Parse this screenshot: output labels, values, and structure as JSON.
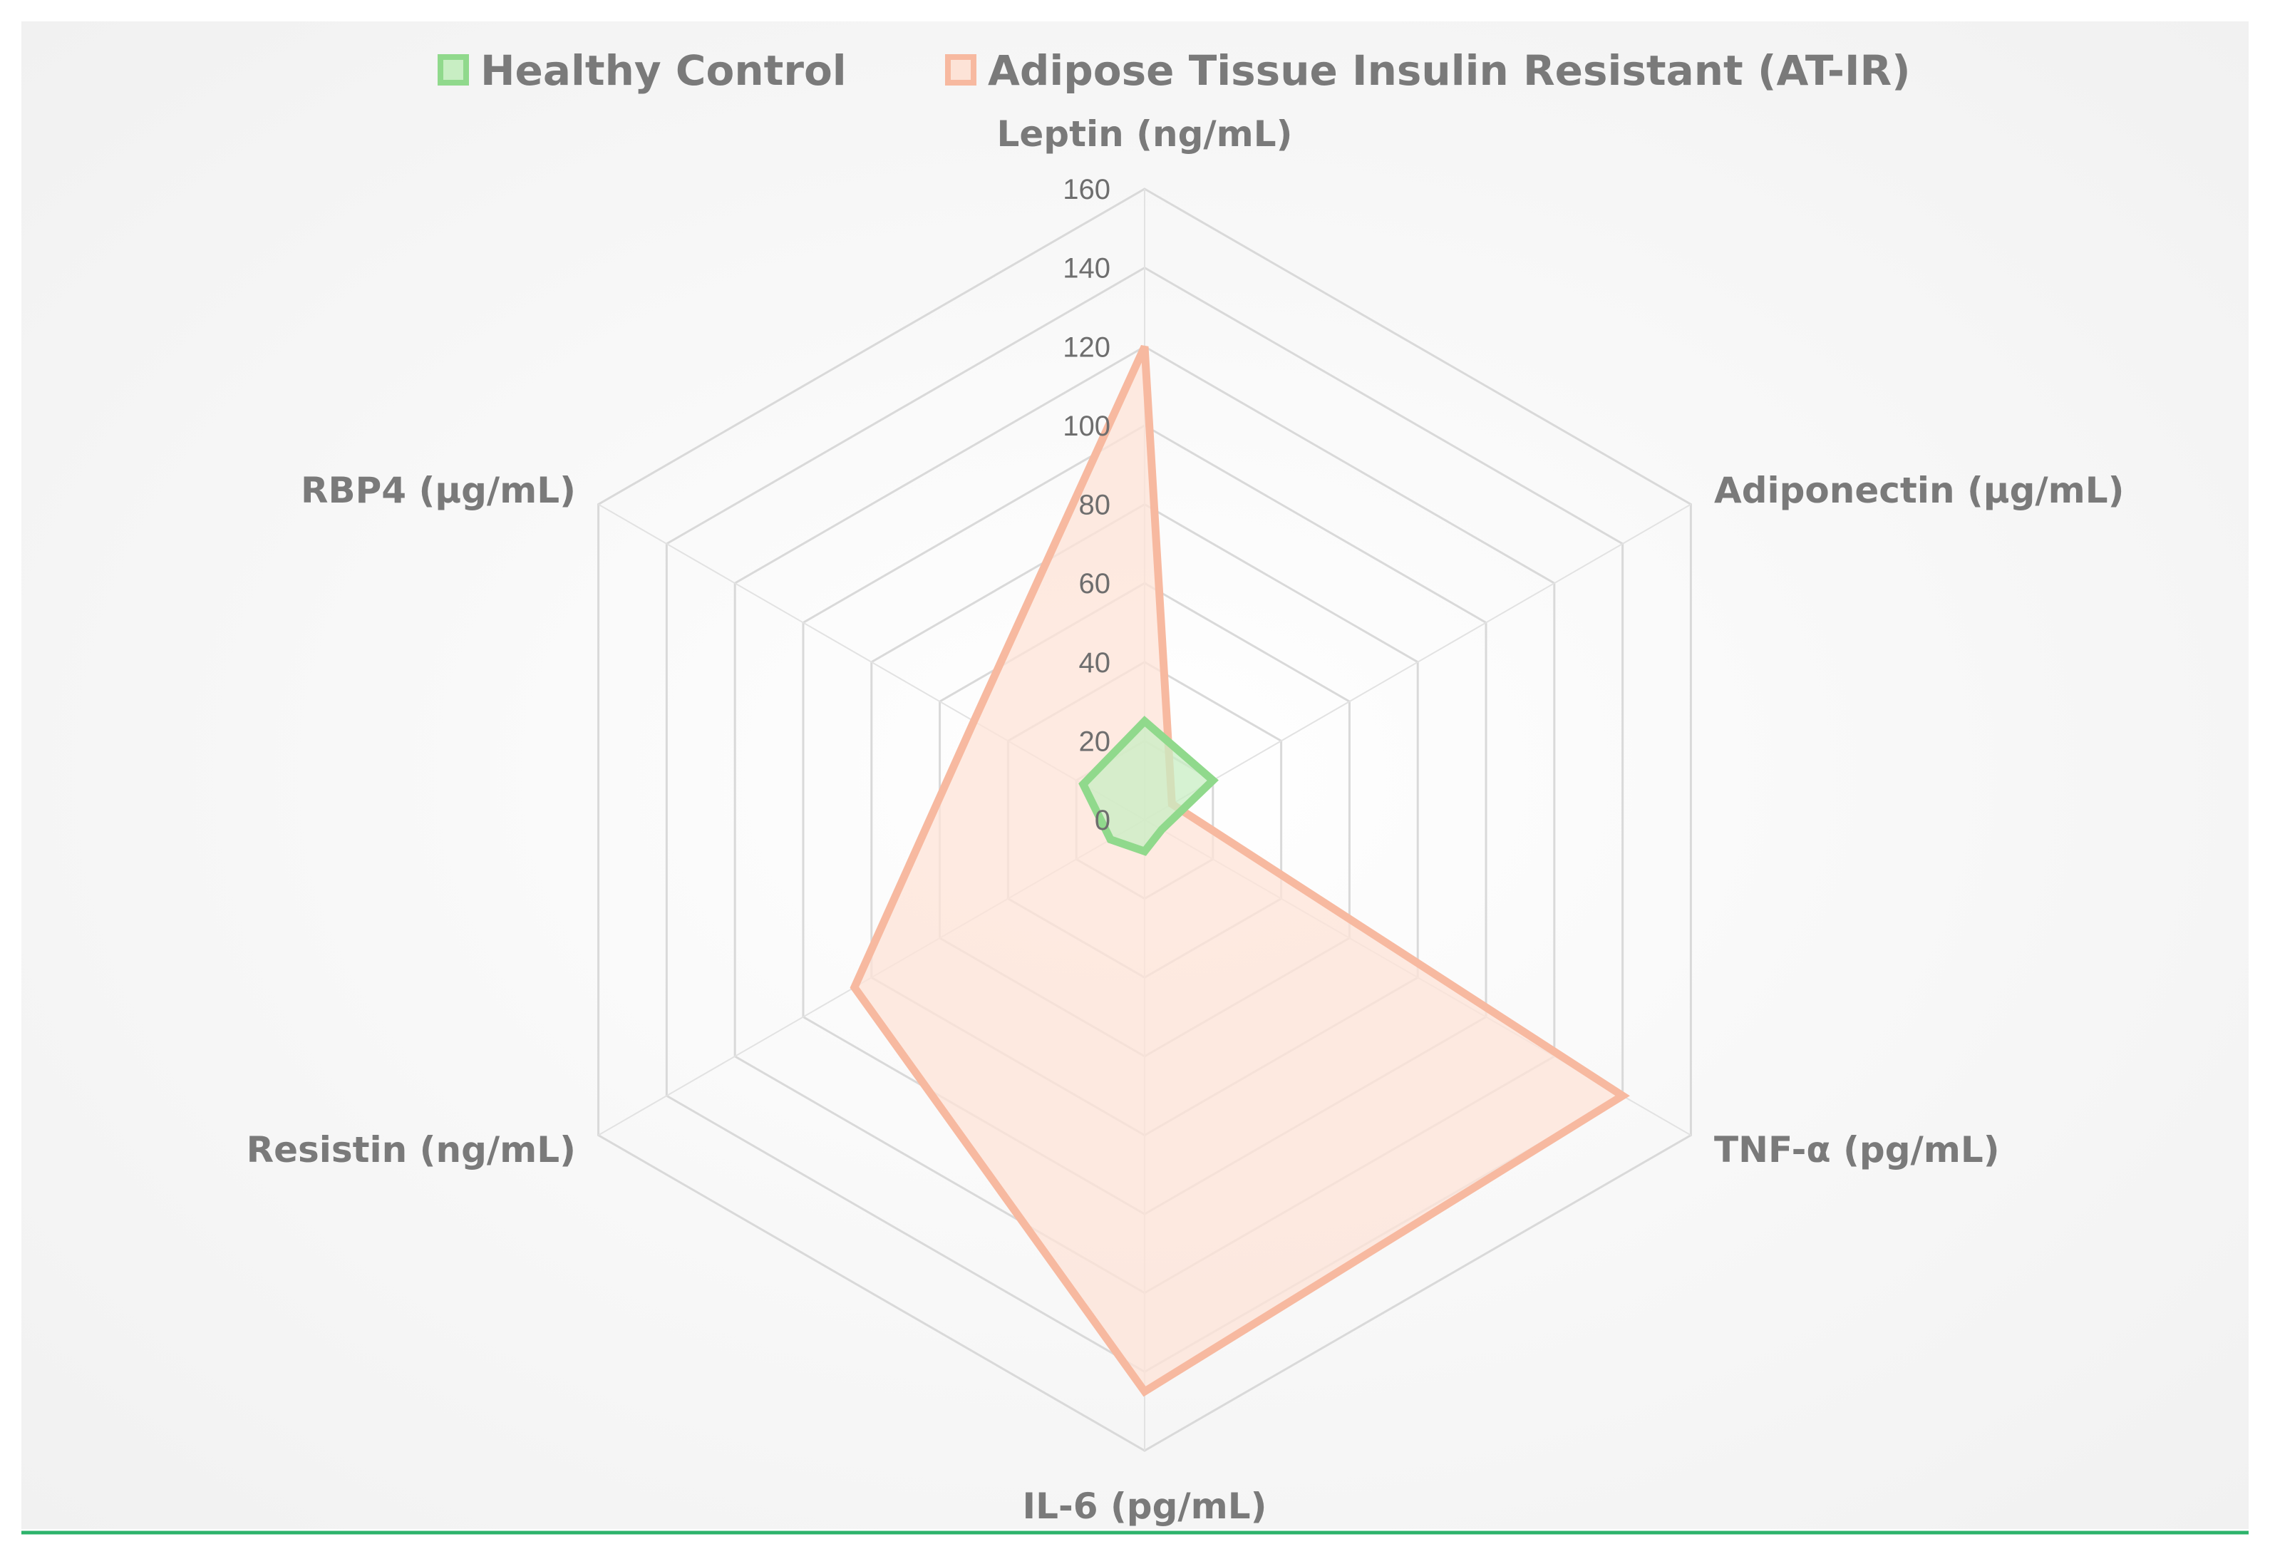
{
  "chart_data": {
    "type": "radar",
    "axes": [
      "Leptin (ng/mL)",
      "Adiponectin (µg/mL)",
      "TNF-α (pg/mL)",
      "IL-6 (pg/mL)",
      "Resistin (ng/mL)",
      "RBP4 (µg/mL)"
    ],
    "r_ticks": [
      "0",
      "20",
      "40",
      "60",
      "80",
      "100",
      "120",
      "140",
      "160"
    ],
    "r_range": [
      0,
      160
    ],
    "series": [
      {
        "name": "Healthy Control",
        "values": [
          25,
          20,
          5,
          8,
          10,
          18
        ],
        "color": "#90d98c",
        "fill": "#c8eec3"
      },
      {
        "name": "Adipose Tissue Insulin Resistant (AT-IR)",
        "values": [
          120,
          8,
          140,
          145,
          85,
          50
        ],
        "color": "#f7b9a0",
        "fill": "#fde3d7"
      }
    ],
    "grid": true,
    "legend_position": "top"
  }
}
